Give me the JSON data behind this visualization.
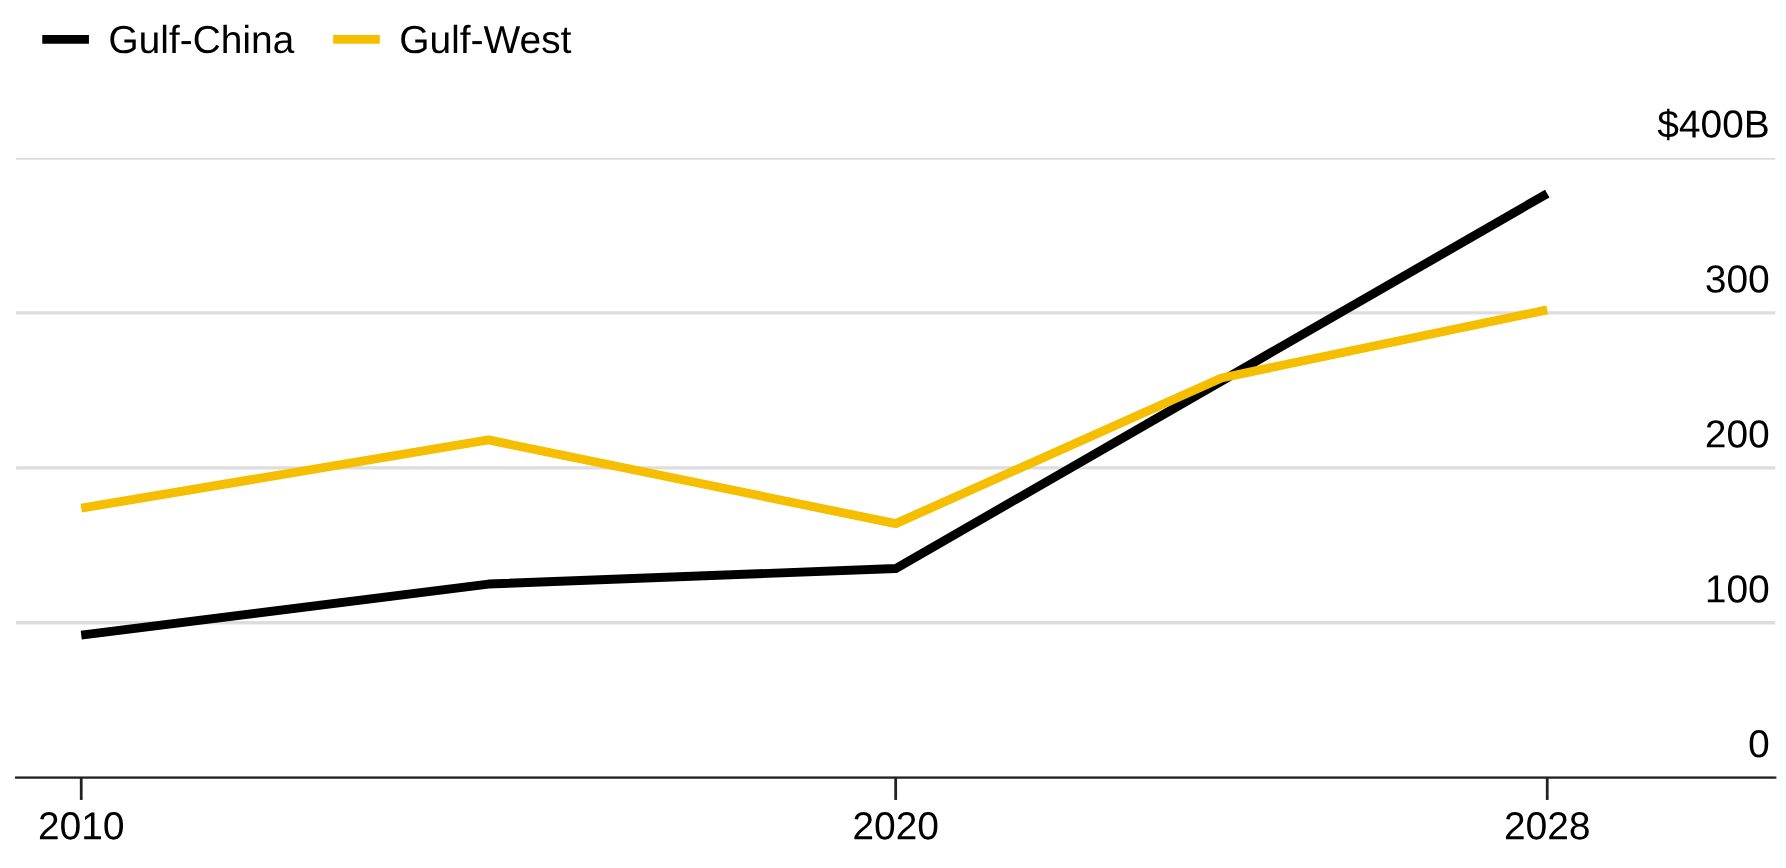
{
  "chart_data": {
    "type": "line",
    "x": [
      2010,
      2015,
      2020,
      2024,
      2028
    ],
    "series": [
      {
        "name": "Gulf-China",
        "color": "#000000",
        "values": [
          92,
          125,
          135,
          null,
          377
        ]
      },
      {
        "name": "Gulf-West",
        "color": "#f5bf00",
        "values": [
          174,
          218,
          164,
          258,
          302
        ]
      }
    ],
    "xlim": [
      2009.2,
      2030.8
    ],
    "xticks": [
      2010,
      2020,
      2028
    ],
    "ylim": [
      0,
      400
    ],
    "yticks": [
      0,
      100,
      200,
      300,
      {
        "value": 400,
        "label": "$400B"
      }
    ],
    "grid": "y",
    "legend": "top left",
    "marker": "none",
    "line_style": "solid"
  }
}
